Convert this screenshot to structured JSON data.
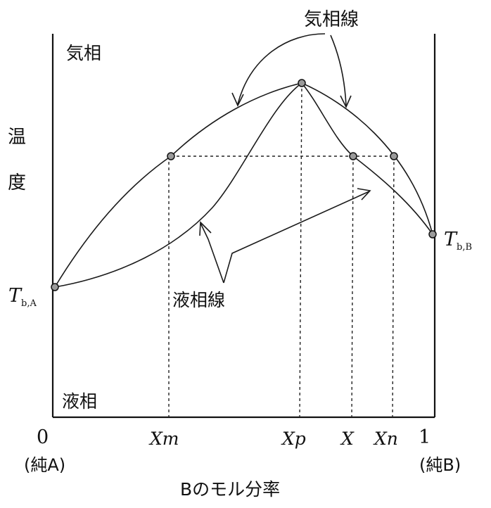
{
  "region_labels": {
    "vapor": "気相",
    "liquid": "液相"
  },
  "axis": {
    "y_label_top": "温",
    "y_label_bottom": "度",
    "x_label": "Bのモル分率",
    "x_start_value": "0",
    "x_start_note": "(純A)",
    "x_end_value": "1",
    "x_end_note": "(純B)"
  },
  "ticks": {
    "xm": "Xm",
    "xp": "Xp",
    "x": "X",
    "xn": "Xn"
  },
  "boiling_points": {
    "a_main": "T",
    "a_sub": "b,A",
    "b_main": "T",
    "b_sub": "b,B"
  },
  "callouts": {
    "vapor_line": "気相線",
    "liquid_line": "液相線"
  }
}
